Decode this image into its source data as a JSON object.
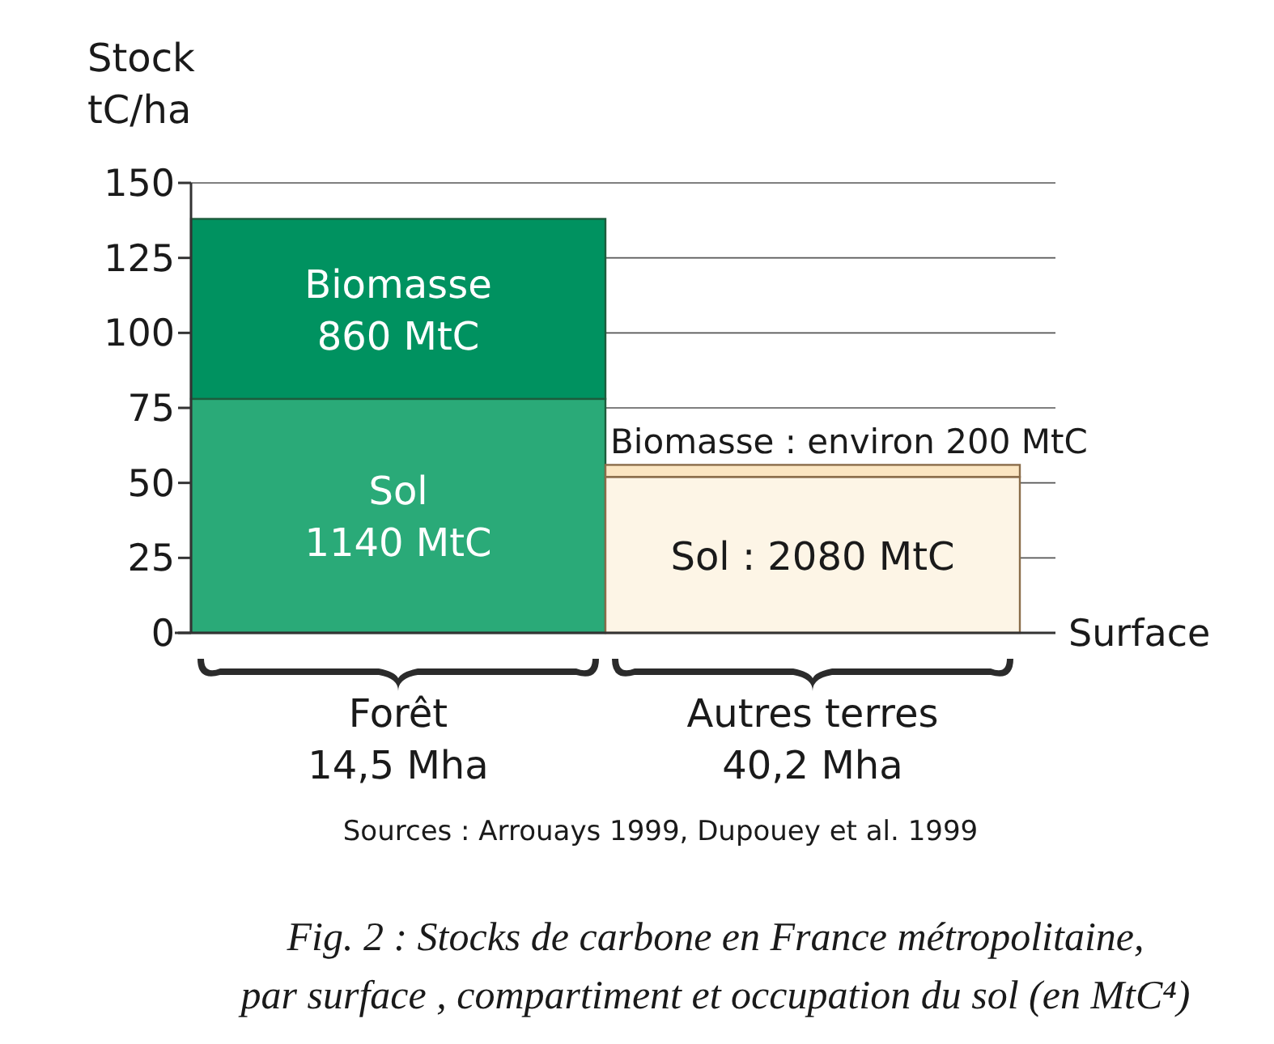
{
  "chart_data": {
    "type": "bar",
    "stacked": true,
    "title": "Fig. 2 : Stocks de carbone en France métropolitaine,\npar surface , compartiment et occupation du sol  (en MtC⁴)",
    "ylabel": "Stock\ntC/ha",
    "xlabel": "Surface",
    "categories": [
      "Forêt\n14,5 Mha",
      "Autres terres\n40,2 Mha"
    ],
    "ylim": [
      0,
      150
    ],
    "yticks": [
      0,
      25,
      50,
      75,
      100,
      125,
      150
    ],
    "grid": "y",
    "series": [
      {
        "colors": [
          "#2aaa78",
          "#fdf5e6"
        ],
        "values": [
          78,
          52
        ]
      },
      {
        "colors": [
          "#009260",
          "#fbe6c2"
        ],
        "values": [
          60,
          4
        ]
      }
    ],
    "annotations": [
      "Sol\n1140 MtC",
      "Biomasse\n860 MtC",
      "Sol : 2080 MtC",
      "Biomasse : environ 200 MtC",
      "Sources : Arrouays 1999, Dupouey et al. 1999"
    ]
  }
}
